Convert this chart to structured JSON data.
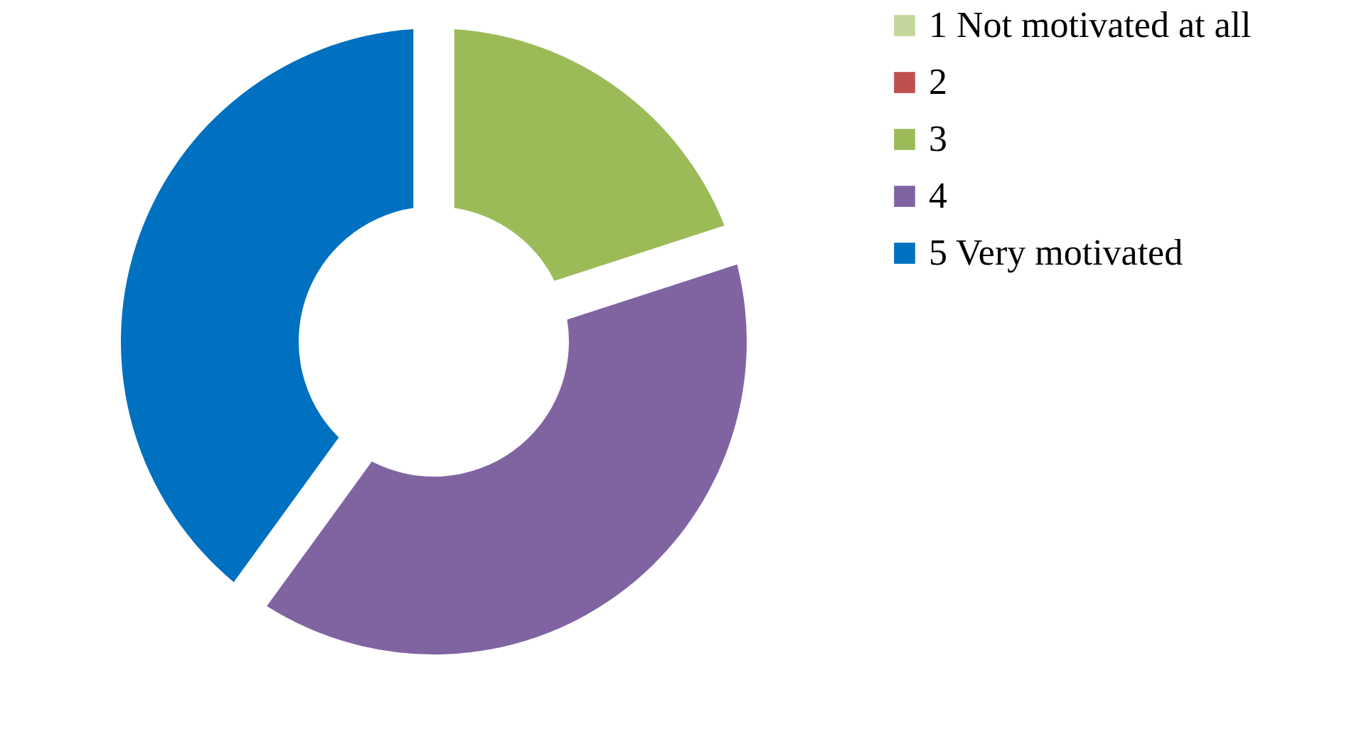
{
  "chart_data": {
    "type": "donut",
    "categories": [
      "1 Not motivated at all",
      "2",
      "3",
      "4",
      "5 Very motivated"
    ],
    "values": [
      0,
      0,
      20,
      40,
      40
    ],
    "colors": [
      "#c3d69b",
      "#c0504d",
      "#9bbb59",
      "#8064a2",
      "#0070c0"
    ],
    "legend": "right"
  }
}
